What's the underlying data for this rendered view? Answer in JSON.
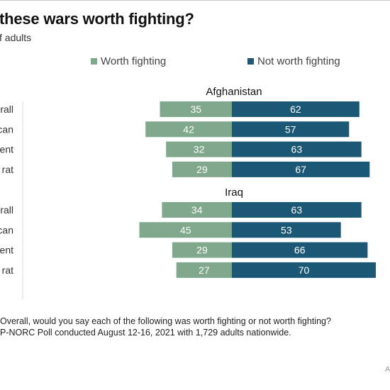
{
  "title": "these wars worth fighting?",
  "subtitle": "f adults",
  "legend": {
    "worth": "Worth fighting",
    "not_worth": "Not worth fighting"
  },
  "colors": {
    "worth": "#7fa88c",
    "not_worth": "#1a5876",
    "axis": "#d9d9d9"
  },
  "chart_data": {
    "type": "bar",
    "orientation": "horizontal",
    "diverging": true,
    "groups": [
      {
        "title": "Afghanistan",
        "categories": [
          "rall",
          "can",
          "ent",
          "rat"
        ],
        "series": [
          {
            "name": "Worth fighting",
            "values": [
              35,
              42,
              32,
              29
            ]
          },
          {
            "name": "Not worth fighting",
            "values": [
              62,
              57,
              63,
              67
            ]
          }
        ]
      },
      {
        "title": "Iraq",
        "categories": [
          "rall",
          "can",
          "ent",
          "rat"
        ],
        "series": [
          {
            "name": "Worth fighting",
            "values": [
              34,
              45,
              29,
              27
            ]
          },
          {
            "name": "Not worth fighting",
            "values": [
              63,
              53,
              66,
              70
            ]
          }
        ]
      }
    ],
    "xlim": [
      -45,
      70
    ],
    "grid": false,
    "legend_position": "top"
  },
  "notes": {
    "question": "Overall, would you say each of the following was worth fighting or not worth fighting?",
    "source": "P-NORC Poll conducted August 12-16, 2021 with 1,729 adults nationwide."
  },
  "credit": "A"
}
